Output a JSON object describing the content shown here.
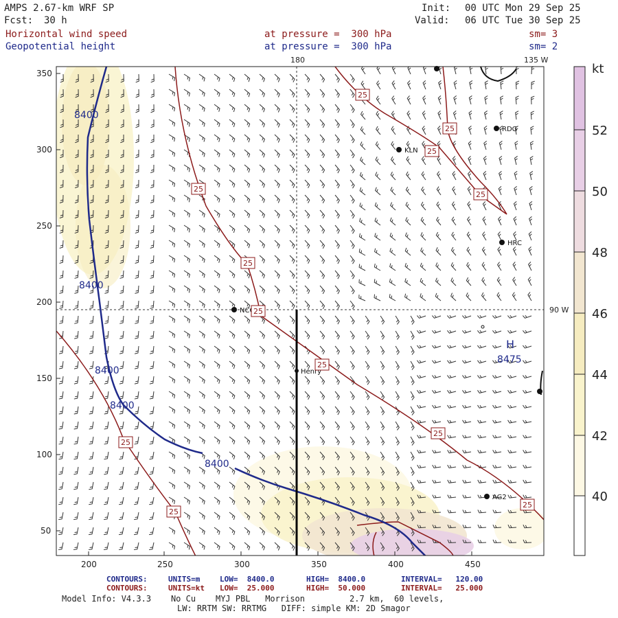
{
  "header": {
    "model": "AMPS 2.67-km WRF SP",
    "fcst_label": "Fcst:",
    "fcst_value": "30 h",
    "init_label": "Init:",
    "init_value": "00 UTC Mon 29 Sep 25",
    "valid_label": "Valid:",
    "valid_value": "06 UTC Tue 30 Sep 25",
    "field1": "Horizontal wind speed",
    "field1_level": "at pressure =  300 hPa",
    "field1_sm": "sm= 3",
    "field2": "Geopotential height",
    "field2_level": "at pressure =  300 hPa",
    "field2_sm": "sm= 2"
  },
  "map": {
    "x_ticks": [
      "200",
      "250",
      "300",
      "350",
      "400",
      "450"
    ],
    "y_ticks": [
      "350",
      "300",
      "250",
      "200",
      "150",
      "100",
      "50"
    ],
    "meridian_labels": {
      "top_180": "180",
      "top_135w": "135 W",
      "right_90w": "90 W"
    },
    "stations": [
      "KLN",
      "RDG",
      "HRC",
      "NCO",
      "Henry",
      "AG2"
    ],
    "high_label": "H",
    "high_value": "8475",
    "height_contour_labels": [
      "8400",
      "8400",
      "8400",
      "8400",
      "8400"
    ],
    "speed_contour_labels": [
      "25",
      "25",
      "25",
      "25",
      "25",
      "25",
      "25",
      "25",
      "25",
      "25"
    ]
  },
  "colorbar": {
    "unit": "kt",
    "labels": [
      "52",
      "50",
      "48",
      "46",
      "44",
      "42",
      "40"
    ],
    "colors": [
      "#ffffff",
      "#fdf8e4",
      "#f9f3cc",
      "#f6ecc0",
      "#f2e6d0",
      "#eedce0",
      "#e8cfe6",
      "#e0c2e2"
    ]
  },
  "footer": {
    "c1_label": "CONTOURS:",
    "c1_units": "UNITS=m",
    "c1_low": "LOW=  8400.0",
    "c1_high": "HIGH=  8400.0",
    "c1_int": "INTERVAL=   120.00",
    "c2_label": "CONTOURS:",
    "c2_units": "UNITS=kt",
    "c2_low": "LOW=  25.000",
    "c2_high": "HIGH=  50.000",
    "c2_int": "INTERVAL=   25.000",
    "model_info": "Model Info: V4.3.3    No Cu    MYJ PBL   Morrison         2.7 km,  60 levels,",
    "model_info2": "LW: RRTM SW: RRTMG   DIFF: simple KM: 2D Smagor"
  }
}
